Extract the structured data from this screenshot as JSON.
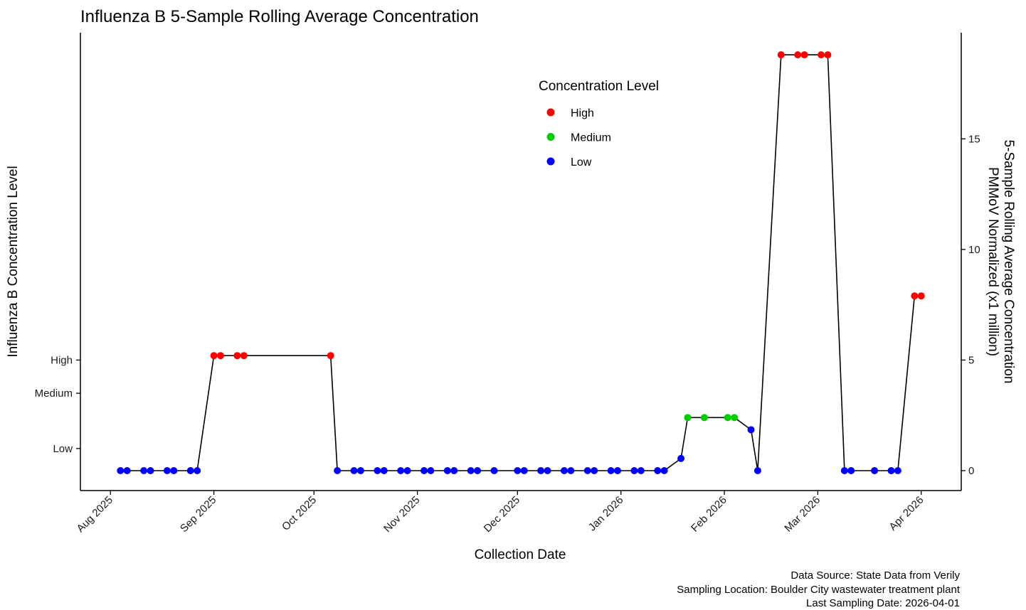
{
  "chart_data": {
    "type": "line",
    "title": "Influenza B 5-Sample Rolling Average Concentration",
    "xlabel": "Collection Date",
    "ylabel_left": "Influenza B Concentration Level",
    "ylabel_right_lines": [
      "5-Sample Rolling Average Concentration",
      "PMMoV Normalized (x1 million)"
    ],
    "x_ticks": [
      {
        "date": "2025-08-01",
        "label": "Aug 2025"
      },
      {
        "date": "2025-09-01",
        "label": "Sep 2025"
      },
      {
        "date": "2025-10-01",
        "label": "Oct 2025"
      },
      {
        "date": "2025-11-01",
        "label": "Nov 2025"
      },
      {
        "date": "2025-12-01",
        "label": "Dec 2025"
      },
      {
        "date": "2026-01-01",
        "label": "Jan 2026"
      },
      {
        "date": "2026-02-01",
        "label": "Feb 2026"
      },
      {
        "date": "2026-03-01",
        "label": "Mar 2026"
      },
      {
        "date": "2026-04-01",
        "label": "Apr 2026"
      }
    ],
    "xlim": [
      "2025-07-23",
      "2026-04-13"
    ],
    "ylim": [
      -0.9,
      19.8
    ],
    "right_ticks": [
      0,
      5,
      10,
      15
    ],
    "left_ticks": [
      {
        "label": "High",
        "value": 5.0
      },
      {
        "label": "Medium",
        "value": 3.5
      },
      {
        "label": "Low",
        "value": 1.0
      }
    ],
    "grid": false,
    "legend": {
      "title": "Concentration Level",
      "position": "top-center",
      "entries": [
        {
          "label": "High",
          "color": "#ff0000"
        },
        {
          "label": "Medium",
          "color": "#00cd00"
        },
        {
          "label": "Low",
          "color": "#0000ff"
        }
      ]
    },
    "level_colors": {
      "High": "#ff0000",
      "Medium": "#00cd00",
      "Low": "#0000ff"
    },
    "line_color": "#000000",
    "points": [
      {
        "date": "2025-08-04",
        "value": 0,
        "level": "Low"
      },
      {
        "date": "2025-08-06",
        "value": 0,
        "level": "Low"
      },
      {
        "date": "2025-08-11",
        "value": 0,
        "level": "Low"
      },
      {
        "date": "2025-08-13",
        "value": 0,
        "level": "Low"
      },
      {
        "date": "2025-08-18",
        "value": 0,
        "level": "Low"
      },
      {
        "date": "2025-08-20",
        "value": 0,
        "level": "Low"
      },
      {
        "date": "2025-08-25",
        "value": 0,
        "level": "Low"
      },
      {
        "date": "2025-08-27",
        "value": 0,
        "level": "Low"
      },
      {
        "date": "2025-09-01",
        "value": 5.2,
        "level": "High"
      },
      {
        "date": "2025-09-03",
        "value": 5.2,
        "level": "High"
      },
      {
        "date": "2025-09-08",
        "value": 5.2,
        "level": "High"
      },
      {
        "date": "2025-09-10",
        "value": 5.2,
        "level": "High"
      },
      {
        "date": "2025-10-06",
        "value": 5.2,
        "level": "High"
      },
      {
        "date": "2025-10-08",
        "value": 0,
        "level": "Low"
      },
      {
        "date": "2025-10-13",
        "value": 0,
        "level": "Low"
      },
      {
        "date": "2025-10-15",
        "value": 0,
        "level": "Low"
      },
      {
        "date": "2025-10-20",
        "value": 0,
        "level": "Low"
      },
      {
        "date": "2025-10-22",
        "value": 0,
        "level": "Low"
      },
      {
        "date": "2025-10-27",
        "value": 0,
        "level": "Low"
      },
      {
        "date": "2025-10-29",
        "value": 0,
        "level": "Low"
      },
      {
        "date": "2025-11-03",
        "value": 0,
        "level": "Low"
      },
      {
        "date": "2025-11-05",
        "value": 0,
        "level": "Low"
      },
      {
        "date": "2025-11-10",
        "value": 0,
        "level": "Low"
      },
      {
        "date": "2025-11-12",
        "value": 0,
        "level": "Low"
      },
      {
        "date": "2025-11-17",
        "value": 0,
        "level": "Low"
      },
      {
        "date": "2025-11-19",
        "value": 0,
        "level": "Low"
      },
      {
        "date": "2025-11-24",
        "value": 0,
        "level": "Low"
      },
      {
        "date": "2025-12-01",
        "value": 0,
        "level": "Low"
      },
      {
        "date": "2025-12-03",
        "value": 0,
        "level": "Low"
      },
      {
        "date": "2025-12-08",
        "value": 0,
        "level": "Low"
      },
      {
        "date": "2025-12-10",
        "value": 0,
        "level": "Low"
      },
      {
        "date": "2025-12-15",
        "value": 0,
        "level": "Low"
      },
      {
        "date": "2025-12-17",
        "value": 0,
        "level": "Low"
      },
      {
        "date": "2025-12-22",
        "value": 0,
        "level": "Low"
      },
      {
        "date": "2025-12-24",
        "value": 0,
        "level": "Low"
      },
      {
        "date": "2025-12-29",
        "value": 0,
        "level": "Low"
      },
      {
        "date": "2025-12-31",
        "value": 0,
        "level": "Low"
      },
      {
        "date": "2026-01-05",
        "value": 0,
        "level": "Low"
      },
      {
        "date": "2026-01-07",
        "value": 0,
        "level": "Low"
      },
      {
        "date": "2026-01-12",
        "value": 0,
        "level": "Low"
      },
      {
        "date": "2026-01-14",
        "value": 0,
        "level": "Low"
      },
      {
        "date": "2026-01-19",
        "value": 0.55,
        "level": "Low"
      },
      {
        "date": "2026-01-21",
        "value": 2.4,
        "level": "Medium"
      },
      {
        "date": "2026-01-26",
        "value": 2.4,
        "level": "Medium"
      },
      {
        "date": "2026-02-02",
        "value": 2.4,
        "level": "Medium"
      },
      {
        "date": "2026-02-04",
        "value": 2.4,
        "level": "Medium"
      },
      {
        "date": "2026-02-09",
        "value": 1.85,
        "level": "Low"
      },
      {
        "date": "2026-02-11",
        "value": 0,
        "level": "Low"
      },
      {
        "date": "2026-02-18",
        "value": 18.8,
        "level": "High"
      },
      {
        "date": "2026-02-23",
        "value": 18.8,
        "level": "High"
      },
      {
        "date": "2026-02-25",
        "value": 18.8,
        "level": "High"
      },
      {
        "date": "2026-03-02",
        "value": 18.8,
        "level": "High"
      },
      {
        "date": "2026-03-04",
        "value": 18.8,
        "level": "High"
      },
      {
        "date": "2026-03-09",
        "value": 0,
        "level": "Low"
      },
      {
        "date": "2026-03-11",
        "value": 0,
        "level": "Low"
      },
      {
        "date": "2026-03-18",
        "value": 0,
        "level": "Low"
      },
      {
        "date": "2026-03-23",
        "value": 0,
        "level": "Low"
      },
      {
        "date": "2026-03-25",
        "value": 0,
        "level": "Low"
      },
      {
        "date": "2026-03-30",
        "value": 7.9,
        "level": "High"
      },
      {
        "date": "2026-04-01",
        "value": 7.9,
        "level": "High"
      }
    ]
  },
  "caption": {
    "line1": "Data Source: State Data from Verily",
    "line2": "Sampling Location: Boulder City wastewater treatment plant",
    "line3": "Last Sampling Date: 2026-04-01"
  }
}
